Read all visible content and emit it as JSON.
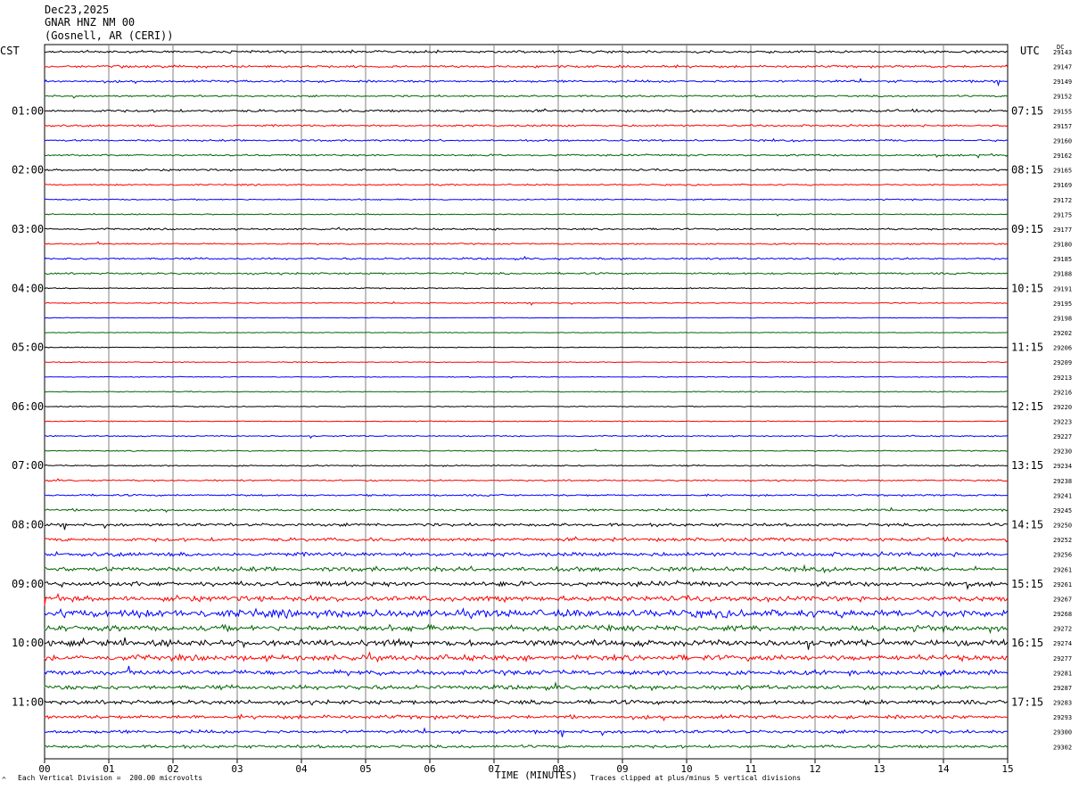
{
  "header": {
    "date": "Dec23,2025",
    "station": "GNAR HNZ NM 00",
    "location": "(Gosnell, AR (CERI))"
  },
  "left_tz": "CST",
  "right_tz": "UTC",
  "dc_label": "DC",
  "footer": {
    "scale_note": "Each Vertical Division =  200.00 microvolts",
    "clip_note": "Traces clipped at plus/minus 5 vertical divisions",
    "corner_mark": "^"
  },
  "colors": {
    "trace_cycle": [
      "#000000",
      "#ff0000",
      "#0000ff",
      "#006400"
    ],
    "grid": "#808080"
  },
  "chart_data": {
    "type": "line",
    "title": "",
    "xlabel": "TIME (MINUTES)",
    "ylabel": "",
    "xlim": [
      0,
      15
    ],
    "x_ticks": [
      "00",
      "01",
      "02",
      "03",
      "04",
      "05",
      "06",
      "07",
      "08",
      "09",
      "10",
      "11",
      "12",
      "13",
      "14",
      "15"
    ],
    "left_hour_labels": [
      "01:00",
      "02:00",
      "03:00",
      "04:00",
      "05:00",
      "06:00",
      "07:00",
      "08:00",
      "09:00",
      "10:00",
      "11:00"
    ],
    "right_hour_labels": [
      "07:15",
      "08:15",
      "09:15",
      "10:15",
      "11:15",
      "12:15",
      "13:15",
      "14:15",
      "15:15",
      "16:15",
      "17:15"
    ],
    "hour_label_rows": [
      4,
      8,
      12,
      16,
      20,
      24,
      28,
      32,
      36,
      40,
      44
    ],
    "row_count": 48,
    "dc_offsets": [
      "29143",
      "29147",
      "29149",
      "29152",
      "29155",
      "29157",
      "29160",
      "29162",
      "29165",
      "29169",
      "29172",
      "29175",
      "29177",
      "29180",
      "29185",
      "29188",
      "29191",
      "29195",
      "29198",
      "29202",
      "29206",
      "29209",
      "29213",
      "29216",
      "29220",
      "29223",
      "29227",
      "29230",
      "29234",
      "29238",
      "29241",
      "29245",
      "29250",
      "29252",
      "29256",
      "29261",
      "29261",
      "29267",
      "29268",
      "29272",
      "29274",
      "29277",
      "29281",
      "29287",
      "29283",
      "29293",
      "29300",
      "29302"
    ],
    "trace_activity": [
      2.2,
      2.0,
      2.0,
      1.6,
      2.2,
      1.8,
      1.6,
      1.6,
      1.7,
      1.3,
      1.1,
      0.9,
      1.5,
      1.3,
      1.7,
      1.6,
      1.0,
      1.0,
      0.6,
      0.6,
      0.8,
      0.8,
      0.7,
      0.8,
      0.8,
      0.8,
      1.1,
      1.0,
      1.2,
      1.4,
      1.6,
      1.9,
      2.6,
      3.0,
      3.6,
      3.8,
      4.2,
      4.6,
      6.5,
      5.0,
      5.4,
      4.8,
      4.2,
      3.8,
      3.6,
      3.2,
      2.8,
      2.6
    ]
  }
}
